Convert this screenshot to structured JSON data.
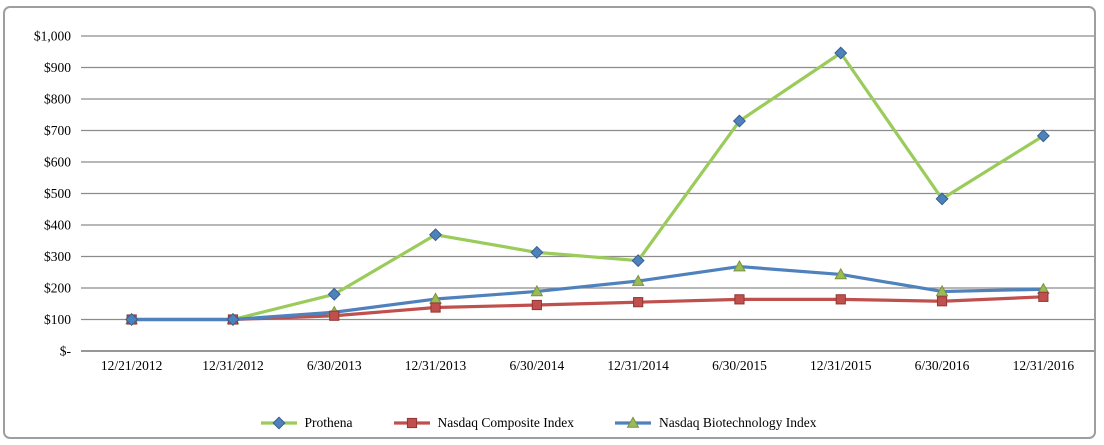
{
  "chart_data": {
    "type": "line",
    "title": "",
    "xlabel": "",
    "ylabel": "",
    "categories": [
      "12/21/2012",
      "12/31/2012",
      "6/30/2013",
      "12/31/2013",
      "6/30/2014",
      "12/31/2014",
      "6/30/2015",
      "12/31/2015",
      "6/30/2016",
      "12/31/2016"
    ],
    "series": [
      {
        "name": "Prothena",
        "values": [
          100,
          100,
          180,
          369,
          313,
          287,
          730,
          946,
          483,
          683
        ],
        "line_color": "#9BCB5A",
        "marker": "diamond",
        "marker_fill": "#4F81BD",
        "marker_edge": "#35618F"
      },
      {
        "name": "Nasdaq Composite Index",
        "values": [
          100,
          100,
          112,
          138,
          146,
          155,
          164,
          164,
          158,
          172
        ],
        "line_color": "#C0504D",
        "marker": "square",
        "marker_fill": "#C0504D",
        "marker_edge": "#943634"
      },
      {
        "name": "Nasdaq Biotechnology Index",
        "values": [
          100,
          100,
          123,
          165,
          189,
          222,
          268,
          243,
          189,
          196
        ],
        "line_color": "#4F81BD",
        "marker": "triangle",
        "marker_fill": "#9BBB59",
        "marker_edge": "#77933C"
      }
    ],
    "y_ticks": [
      {
        "value": 0,
        "label": "$-"
      },
      {
        "value": 100,
        "label": "$100"
      },
      {
        "value": 200,
        "label": "$200"
      },
      {
        "value": 300,
        "label": "$300"
      },
      {
        "value": 400,
        "label": "$400"
      },
      {
        "value": 500,
        "label": "$500"
      },
      {
        "value": 600,
        "label": "$600"
      },
      {
        "value": 700,
        "label": "$700"
      },
      {
        "value": 800,
        "label": "$800"
      },
      {
        "value": 900,
        "label": "$900"
      },
      {
        "value": 1000,
        "label": "$1,000"
      }
    ],
    "ylim": [
      0,
      1000
    ],
    "grid": true,
    "grid_color": "#8C8C8C",
    "axis_color": "#595959",
    "text_color": "#000000",
    "legend_position": "bottom"
  }
}
